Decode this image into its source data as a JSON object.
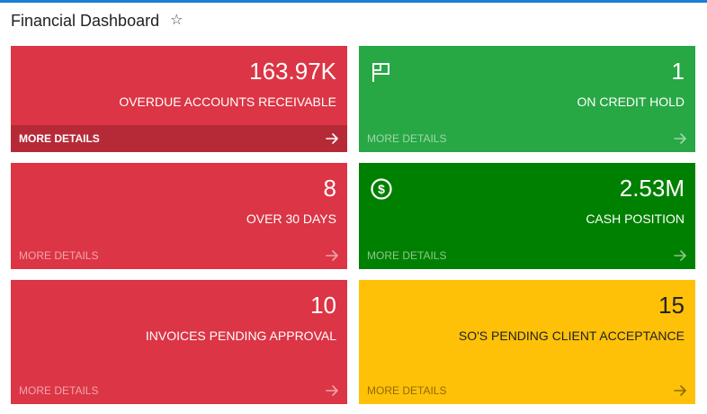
{
  "header": {
    "title": "Financial Dashboard",
    "favorite_icon": "star-outline-icon"
  },
  "colors": {
    "accent_line": "#1a7fd6",
    "red": "#dc3545",
    "green": "#28a745",
    "dark_green": "#008000",
    "yellow": "#ffc107"
  },
  "tiles": [
    {
      "value": "163.97K",
      "label": "OVERDUE ACCOUNTS RECEIVABLE",
      "more": "MORE DETAILS",
      "color": "red",
      "icon": ""
    },
    {
      "value": "1",
      "label": "ON CREDIT HOLD",
      "more": "MORE DETAILS",
      "color": "green",
      "icon": "flag-icon"
    },
    {
      "value": "8",
      "label": "OVER 30 DAYS",
      "more": "MORE DETAILS",
      "color": "red",
      "icon": ""
    },
    {
      "value": "2.53M",
      "label": "CASH POSITION",
      "more": "MORE DETAILS",
      "color": "dark-green",
      "icon": "dollar-circle-icon"
    },
    {
      "value": "10",
      "label": "INVOICES PENDING APPROVAL",
      "more": "MORE DETAILS",
      "color": "red",
      "icon": ""
    },
    {
      "value": "15",
      "label": "SO'S PENDING CLIENT ACCEPTANCE",
      "more": "MORE DETAILS",
      "color": "yellow",
      "icon": ""
    }
  ]
}
